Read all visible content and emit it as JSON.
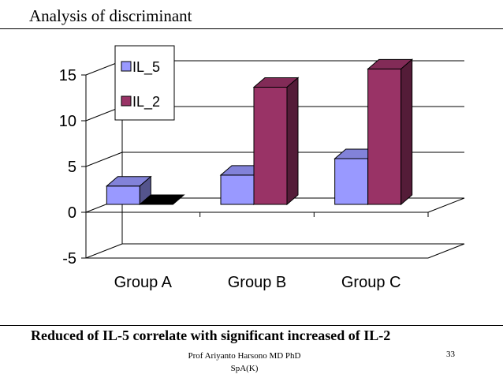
{
  "slide": {
    "title": "Analysis of discriminant",
    "caption": "Reduced of IL-5 correlate with significant increased of IL-2",
    "footer_line1": "Prof Ariyanto Harsono MD PhD",
    "footer_line2": "SpA(K)",
    "page_number": "33"
  },
  "chart_data": {
    "type": "bar",
    "style": "3d-clustered-column",
    "title": "",
    "xlabel": "",
    "ylabel": "",
    "categories": [
      "Group A",
      "Group B",
      "Group C"
    ],
    "series": [
      {
        "name": "IL_5",
        "values": [
          2,
          3.2,
          5
        ],
        "color": "#9999ff"
      },
      {
        "name": "IL_2",
        "values": [
          0,
          12.8,
          14.8
        ],
        "color": "#993366"
      }
    ],
    "ylim": [
      -5,
      15
    ],
    "yticks": [
      -5,
      0,
      5,
      10,
      15
    ],
    "grid": true,
    "legend": "top-left"
  }
}
